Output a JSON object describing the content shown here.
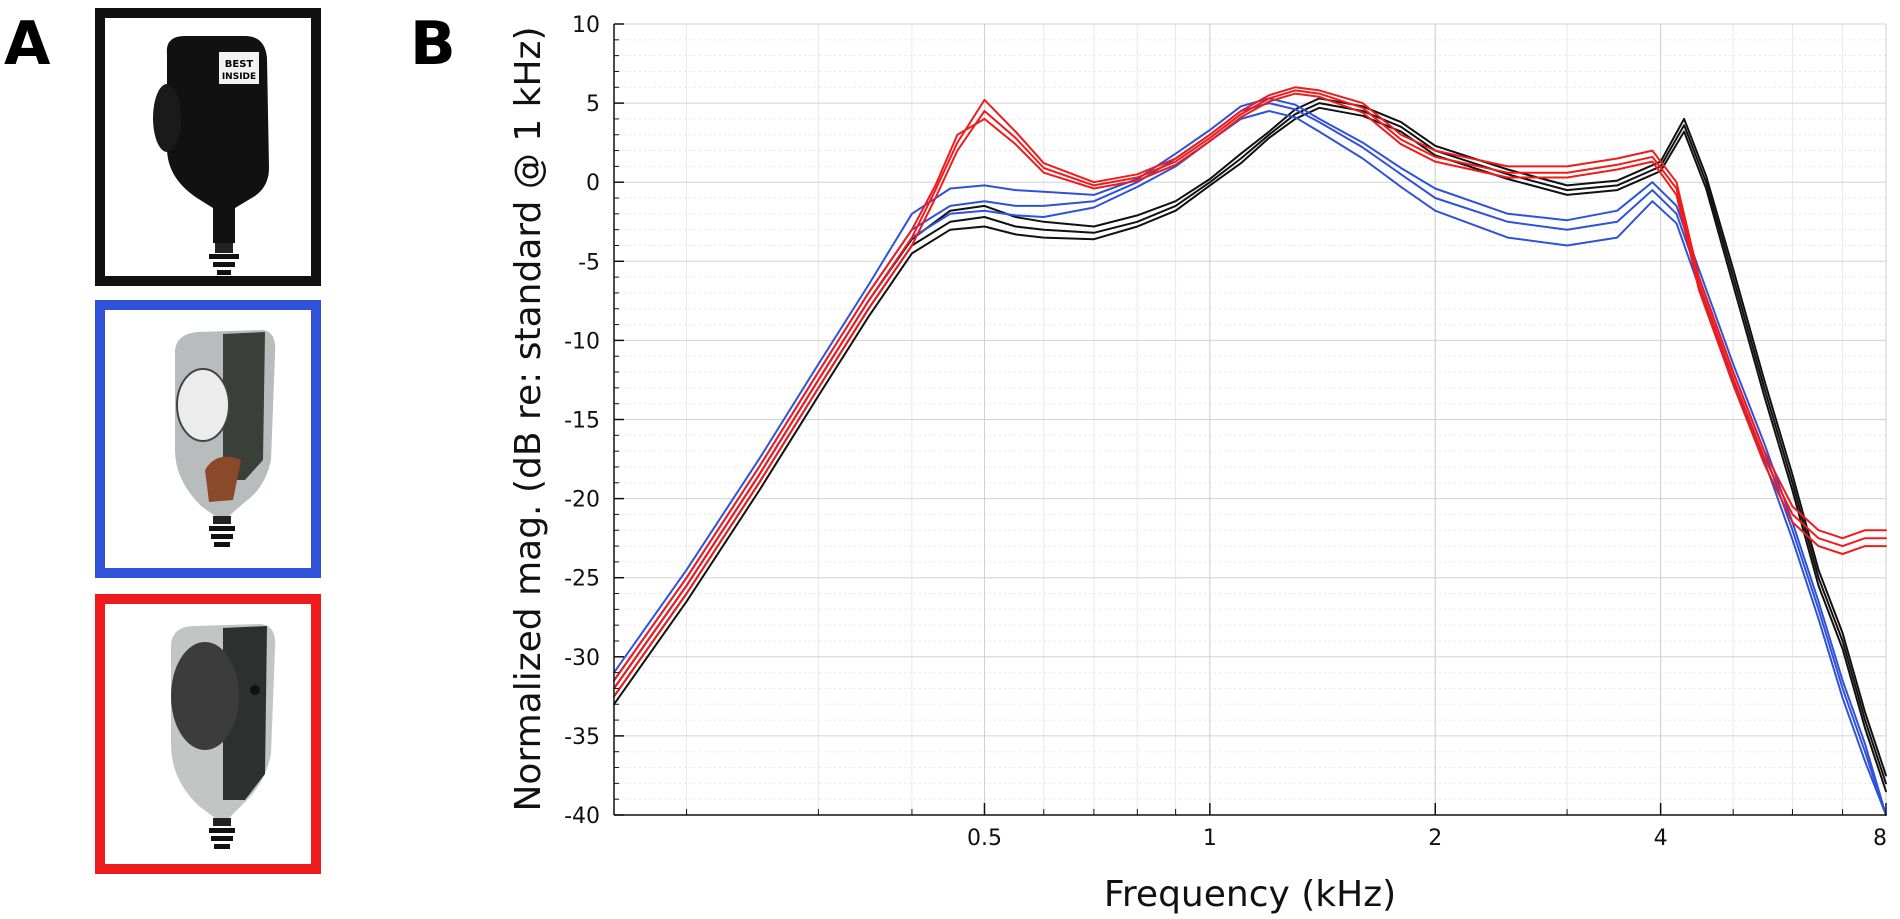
{
  "panels": {
    "a_label": "A",
    "b_label": "B"
  },
  "photos": [
    {
      "name": "standard",
      "border_color": "#111111",
      "sticker_line1": "BEST",
      "sticker_line2": "INSIDE"
    },
    {
      "name": "blue-variant",
      "border_color": "#2f52d9"
    },
    {
      "name": "red-variant",
      "border_color": "#ee1c1c"
    }
  ],
  "chart_data": {
    "type": "line",
    "title": "",
    "xlabel": "Frequency (kHz)",
    "ylabel": "Normalized mag. (dB re: standard @ 1 kHz)",
    "x_scale": "log",
    "xlim": [
      0.16,
      8
    ],
    "ylim": [
      -40,
      10
    ],
    "x_ticks": [
      0.5,
      1,
      2,
      4,
      8
    ],
    "x_tick_labels": [
      "0.5",
      "1",
      "2",
      "4",
      "8"
    ],
    "y_ticks": [
      10,
      5,
      0,
      -5,
      -10,
      -15,
      -20,
      -25,
      -30,
      -35,
      -40
    ],
    "y_tick_labels": [
      "10",
      "5",
      "0",
      "-5",
      "-10",
      "-15",
      "-20",
      "-25",
      "-30",
      "-35",
      "-40"
    ],
    "grid": true,
    "series": [
      {
        "color": "#111111",
        "x": [
          0.16,
          0.2,
          0.25,
          0.3,
          0.35,
          0.4,
          0.45,
          0.5,
          0.55,
          0.6,
          0.7,
          0.8,
          0.9,
          1.0,
          1.1,
          1.2,
          1.3,
          1.4,
          1.6,
          1.8,
          2.0,
          2.5,
          3.0,
          3.5,
          4.0,
          4.3,
          4.6,
          5.0,
          5.5,
          6.0,
          6.5,
          7.0,
          7.5,
          8.0
        ],
        "y": [
          -32.5,
          -26,
          -19,
          -13,
          -8,
          -4,
          -2.5,
          -2.2,
          -2.8,
          -3,
          -3.2,
          -2.5,
          -1.5,
          0,
          1.5,
          3,
          4.3,
          5,
          4.5,
          3.5,
          2,
          0.5,
          -0.5,
          -0.2,
          1,
          3.6,
          0,
          -6,
          -13,
          -19,
          -25,
          -29,
          -34,
          -38
        ]
      },
      {
        "color": "#111111",
        "x": [
          0.16,
          0.2,
          0.25,
          0.3,
          0.35,
          0.4,
          0.45,
          0.5,
          0.55,
          0.6,
          0.7,
          0.8,
          0.9,
          1.0,
          1.1,
          1.2,
          1.3,
          1.4,
          1.6,
          1.8,
          2.0,
          2.5,
          3.0,
          3.5,
          4.0,
          4.3,
          4.6,
          5.0,
          5.5,
          6.0,
          6.5,
          7.0,
          7.5,
          8.0
        ],
        "y": [
          -33,
          -26.5,
          -19.5,
          -13.5,
          -8.5,
          -4.5,
          -3,
          -2.8,
          -3.3,
          -3.5,
          -3.6,
          -2.8,
          -1.8,
          -0.2,
          1.2,
          2.8,
          4,
          4.7,
          4.2,
          3.2,
          1.7,
          0.2,
          -0.8,
          -0.5,
          0.7,
          3.2,
          -0.4,
          -6.5,
          -13.5,
          -19.5,
          -25.5,
          -29.5,
          -34.5,
          -38.5
        ]
      },
      {
        "color": "#111111",
        "x": [
          0.16,
          0.2,
          0.25,
          0.3,
          0.35,
          0.4,
          0.45,
          0.5,
          0.55,
          0.6,
          0.7,
          0.8,
          0.9,
          1.0,
          1.1,
          1.2,
          1.3,
          1.4,
          1.6,
          1.8,
          2.0,
          2.5,
          3.0,
          3.5,
          4.0,
          4.3,
          4.6,
          5.0,
          5.5,
          6.0,
          6.5,
          7.0,
          7.5,
          8.0
        ],
        "y": [
          -32,
          -25.5,
          -18.5,
          -12.5,
          -7.5,
          -3.6,
          -1.8,
          -1.5,
          -2.2,
          -2.5,
          -2.8,
          -2.1,
          -1.2,
          0.2,
          1.8,
          3.2,
          4.6,
          5.3,
          4.8,
          3.8,
          2.3,
          0.8,
          -0.2,
          0.1,
          1.3,
          4,
          0.4,
          -5.5,
          -12.5,
          -18.5,
          -24.5,
          -28.5,
          -33.5,
          -37.5
        ]
      },
      {
        "color": "#2f52d9",
        "x": [
          0.16,
          0.2,
          0.25,
          0.3,
          0.35,
          0.4,
          0.45,
          0.5,
          0.55,
          0.6,
          0.7,
          0.8,
          0.9,
          1.0,
          1.1,
          1.2,
          1.3,
          1.4,
          1.6,
          1.8,
          2.0,
          2.5,
          3.0,
          3.5,
          3.9,
          4.2,
          4.5,
          5.0,
          5.5,
          6.0,
          6.5,
          7.0,
          7.5,
          8.0
        ],
        "y": [
          -31.5,
          -25,
          -18,
          -12,
          -7,
          -3,
          -1.5,
          -1.2,
          -1.5,
          -1.5,
          -1.2,
          0,
          1.5,
          3,
          4.5,
          5,
          4.6,
          3.8,
          2.2,
          0.5,
          -1,
          -2.5,
          -3,
          -2.5,
          -0.5,
          -2,
          -6,
          -12,
          -17,
          -22,
          -27,
          -32,
          -36,
          -40
        ]
      },
      {
        "color": "#2f52d9",
        "x": [
          0.16,
          0.2,
          0.25,
          0.3,
          0.35,
          0.4,
          0.45,
          0.5,
          0.55,
          0.6,
          0.7,
          0.8,
          0.9,
          1.0,
          1.1,
          1.2,
          1.3,
          1.4,
          1.6,
          1.8,
          2.0,
          2.5,
          3.0,
          3.5,
          3.9,
          4.2,
          4.5,
          5.0,
          5.5,
          6.0,
          6.5,
          7.0,
          7.5,
          8.0
        ],
        "y": [
          -31,
          -24.5,
          -17.5,
          -11.5,
          -6.5,
          -2,
          -0.4,
          -0.2,
          -0.5,
          -0.6,
          -0.8,
          0.2,
          1.8,
          3.3,
          4.8,
          5.3,
          4.9,
          4,
          2.5,
          0.9,
          -0.4,
          -2,
          -2.4,
          -1.8,
          0,
          -1.5,
          -5.5,
          -11.5,
          -16.5,
          -21.5,
          -26.5,
          -31.5,
          -35.5,
          -40
        ]
      },
      {
        "color": "#2f52d9",
        "x": [
          0.16,
          0.2,
          0.25,
          0.3,
          0.35,
          0.4,
          0.45,
          0.5,
          0.55,
          0.6,
          0.7,
          0.8,
          0.9,
          1.0,
          1.1,
          1.2,
          1.3,
          1.4,
          1.6,
          1.8,
          2.0,
          2.5,
          3.0,
          3.5,
          3.9,
          4.2,
          4.5,
          5.0,
          5.5,
          6.0,
          6.5,
          7.0,
          7.5,
          8.0
        ],
        "y": [
          -32,
          -25.5,
          -18.5,
          -12.5,
          -7.5,
          -3.5,
          -2,
          -1.8,
          -2.1,
          -2.2,
          -1.6,
          -0.3,
          1,
          2.6,
          4,
          4.5,
          4.1,
          3.2,
          1.5,
          -0.3,
          -1.8,
          -3.5,
          -4,
          -3.5,
          -1.2,
          -2.6,
          -6.6,
          -12.6,
          -17.6,
          -22.6,
          -27.6,
          -32.6,
          -36.6,
          -40
        ]
      },
      {
        "color": "#ee1c1c",
        "x": [
          0.16,
          0.2,
          0.25,
          0.3,
          0.35,
          0.4,
          0.43,
          0.46,
          0.5,
          0.55,
          0.6,
          0.7,
          0.8,
          0.9,
          1.0,
          1.1,
          1.2,
          1.3,
          1.4,
          1.6,
          1.8,
          2.0,
          2.5,
          3.0,
          3.5,
          3.9,
          4.2,
          4.5,
          5.0,
          5.5,
          6.0,
          6.5,
          7.0,
          7.5,
          8.0
        ],
        "y": [
          -32,
          -25.5,
          -18.5,
          -12.5,
          -7.5,
          -3.5,
          -0.5,
          2.5,
          5.2,
          3.2,
          1.2,
          0,
          0.5,
          1.5,
          3,
          4.5,
          5.5,
          6,
          5.8,
          5,
          3,
          2,
          1,
          1,
          1.5,
          2,
          0,
          -6,
          -12,
          -17,
          -20.5,
          -22,
          -22.5,
          -22,
          -22
        ]
      },
      {
        "color": "#ee1c1c",
        "x": [
          0.16,
          0.2,
          0.25,
          0.3,
          0.35,
          0.4,
          0.43,
          0.46,
          0.5,
          0.55,
          0.6,
          0.7,
          0.8,
          0.9,
          1.0,
          1.1,
          1.2,
          1.3,
          1.4,
          1.6,
          1.8,
          2.0,
          2.5,
          3.0,
          3.5,
          3.9,
          4.2,
          4.5,
          5.0,
          5.5,
          6.0,
          6.5,
          7.0,
          7.5,
          8.0
        ],
        "y": [
          -32.5,
          -26,
          -19,
          -13,
          -8,
          -4,
          -1,
          2,
          4.5,
          2.8,
          0.9,
          -0.2,
          0.3,
          1.3,
          2.8,
          4.3,
          5.3,
          5.8,
          5.6,
          4.7,
          2.7,
          1.6,
          0.6,
          0.6,
          1.1,
          1.6,
          -0.4,
          -6.4,
          -12.4,
          -17.4,
          -21,
          -22.5,
          -23,
          -22.5,
          -22.5
        ]
      },
      {
        "color": "#ee1c1c",
        "x": [
          0.16,
          0.2,
          0.25,
          0.3,
          0.35,
          0.4,
          0.43,
          0.46,
          0.5,
          0.55,
          0.6,
          0.7,
          0.8,
          0.9,
          1.0,
          1.1,
          1.2,
          1.3,
          1.4,
          1.6,
          1.8,
          2.0,
          2.5,
          3.0,
          3.5,
          3.9,
          4.2,
          4.5,
          5.0,
          5.5,
          6.0,
          6.5,
          7.0,
          7.5,
          8.0
        ],
        "y": [
          -31.5,
          -25,
          -18,
          -12,
          -7,
          -3,
          -0.2,
          3,
          4,
          2.4,
          0.6,
          -0.4,
          0.1,
          1.1,
          2.6,
          4.1,
          5.1,
          5.6,
          5.4,
          4.4,
          2.4,
          1.3,
          0.3,
          0.3,
          0.8,
          1.3,
          -0.8,
          -6.8,
          -12.8,
          -17.8,
          -21.5,
          -23,
          -23.5,
          -23,
          -23
        ]
      }
    ]
  }
}
